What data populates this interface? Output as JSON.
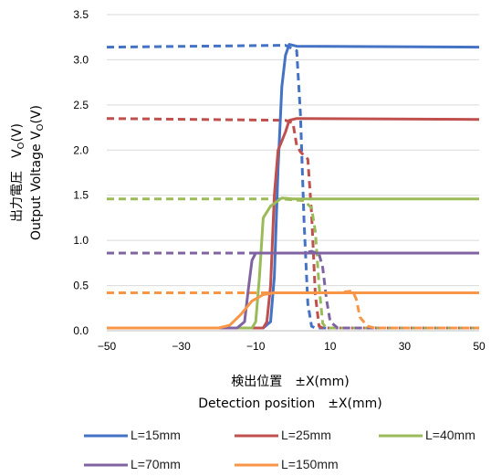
{
  "chart_data": {
    "type": "line",
    "xlabel_jp": "検出位置　±X(mm)",
    "xlabel_en": "Detection position　±X(mm)",
    "ylabel_jp": "出力電圧　V",
    "ylabel_jp_sub": "O",
    "ylabel_jp_end": "(V)",
    "ylabel_en": "Output Voltage  V",
    "ylabel_en_sub": "O",
    "ylabel_en_end": "(V)",
    "xlim": [
      -50,
      50
    ],
    "ylim": [
      0,
      3.5
    ],
    "xticks": [
      -50,
      -30,
      -10,
      10,
      30,
      50
    ],
    "xtick_labels": [
      "−50",
      "−30",
      "−10",
      "10",
      "30",
      "50"
    ],
    "yticks": [
      0,
      0.5,
      1,
      1.5,
      2,
      2.5,
      3,
      3.5
    ],
    "ytick_labels": [
      "0.0",
      "0.5",
      "1.0",
      "1.5",
      "2.0",
      "2.5",
      "3.0",
      "3.5"
    ],
    "grid": "horizontal",
    "legend_position": "bottom",
    "series": [
      {
        "name": "L=15mm",
        "color": "#4472C4",
        "solid": [
          [
            -50,
            0.03
          ],
          [
            -8,
            0.03
          ],
          [
            -6,
            0.1
          ],
          [
            -5,
            0.6
          ],
          [
            -4,
            1.8
          ],
          [
            -3,
            2.7
          ],
          [
            -2,
            3.05
          ],
          [
            -1,
            3.17
          ],
          [
            1,
            3.15
          ],
          [
            50,
            3.14
          ]
        ],
        "dashed": [
          [
            -50,
            3.14
          ],
          [
            -2,
            3.16
          ],
          [
            1,
            3.1
          ],
          [
            2,
            2.4
          ],
          [
            3,
            1.2
          ],
          [
            4,
            0.3
          ],
          [
            5,
            0.05
          ],
          [
            6,
            0.03
          ],
          [
            50,
            0.03
          ]
        ]
      },
      {
        "name": "L=25mm",
        "color": "#C0504D",
        "solid": [
          [
            -50,
            0.03
          ],
          [
            -8,
            0.03
          ],
          [
            -7,
            0.1
          ],
          [
            -6,
            0.5
          ],
          [
            -5,
            1.5
          ],
          [
            -4,
            2.0
          ],
          [
            -3,
            2.1
          ],
          [
            -2,
            2.2
          ],
          [
            -1,
            2.33
          ],
          [
            1,
            2.35
          ],
          [
            50,
            2.34
          ]
        ],
        "dashed": [
          [
            -50,
            2.35
          ],
          [
            -2,
            2.33
          ],
          [
            0,
            2.3
          ],
          [
            1,
            2.05
          ],
          [
            2,
            1.98
          ],
          [
            4,
            1.9
          ],
          [
            5,
            1.3
          ],
          [
            6,
            0.4
          ],
          [
            7,
            0.05
          ],
          [
            8,
            0.03
          ],
          [
            50,
            0.03
          ]
        ]
      },
      {
        "name": "L=40mm",
        "color": "#9BBB59",
        "solid": [
          [
            -50,
            0.03
          ],
          [
            -11,
            0.03
          ],
          [
            -10,
            0.1
          ],
          [
            -9,
            0.6
          ],
          [
            -8,
            1.25
          ],
          [
            -6,
            1.38
          ],
          [
            -3,
            1.47
          ],
          [
            0,
            1.46
          ],
          [
            50,
            1.46
          ]
        ],
        "dashed": [
          [
            -50,
            1.46
          ],
          [
            -3,
            1.46
          ],
          [
            3,
            1.44
          ],
          [
            5,
            1.36
          ],
          [
            6,
            1.1
          ],
          [
            7,
            0.5
          ],
          [
            8,
            0.08
          ],
          [
            9,
            0.03
          ],
          [
            50,
            0.03
          ]
        ]
      },
      {
        "name": "L=70mm",
        "color": "#8064A2",
        "solid": [
          [
            -50,
            0.03
          ],
          [
            -15,
            0.03
          ],
          [
            -13,
            0.1
          ],
          [
            -12,
            0.45
          ],
          [
            -11,
            0.78
          ],
          [
            -10,
            0.86
          ],
          [
            50,
            0.86
          ]
        ],
        "dashed": [
          [
            -50,
            0.86
          ],
          [
            3,
            0.86
          ],
          [
            5,
            0.88
          ],
          [
            7,
            0.85
          ],
          [
            8,
            0.7
          ],
          [
            9,
            0.35
          ],
          [
            10,
            0.1
          ],
          [
            12,
            0.03
          ],
          [
            50,
            0.03
          ]
        ]
      },
      {
        "name": "L=150mm",
        "color": "#F79646",
        "solid": [
          [
            -50,
            0.03
          ],
          [
            -20,
            0.03
          ],
          [
            -17,
            0.06
          ],
          [
            -14,
            0.18
          ],
          [
            -11,
            0.33
          ],
          [
            -8,
            0.4
          ],
          [
            -5,
            0.42
          ],
          [
            50,
            0.42
          ]
        ],
        "dashed": [
          [
            -50,
            0.42
          ],
          [
            12,
            0.42
          ],
          [
            16,
            0.44
          ],
          [
            17,
            0.35
          ],
          [
            18,
            0.15
          ],
          [
            20,
            0.05
          ],
          [
            22,
            0.03
          ],
          [
            50,
            0.03
          ]
        ]
      }
    ]
  }
}
